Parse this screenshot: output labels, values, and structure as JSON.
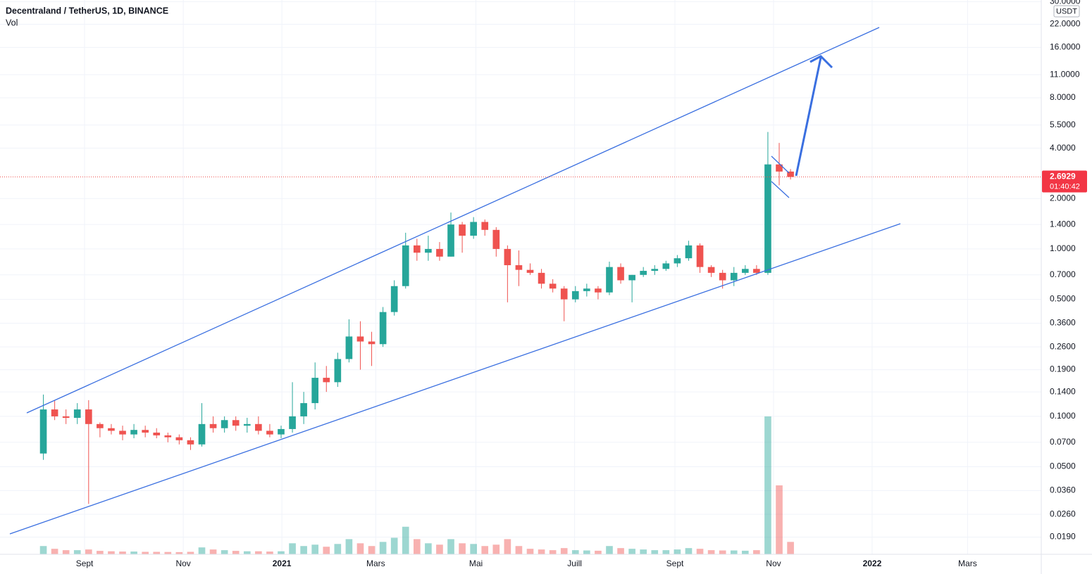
{
  "chart_data": {
    "type": "candlestick",
    "title": "Decentraland / TetherUS, 1D, BINANCE",
    "volume_label": "Vol",
    "currency": "USDT",
    "last_price": 2.6929,
    "countdown": "01:40:42",
    "log_scale": true,
    "grid": true,
    "up_color": "#26a69a",
    "down_color": "#ef5350",
    "open": [
      0.06,
      0.11,
      0.1,
      0.098,
      0.11,
      0.09,
      0.085,
      0.082,
      0.078,
      0.083,
      0.08,
      0.077,
      0.075,
      0.072,
      0.068,
      0.09,
      0.085,
      0.095,
      0.088,
      0.09,
      0.082,
      0.078,
      0.084,
      0.1,
      0.12,
      0.17,
      0.16,
      0.22,
      0.3,
      0.28,
      0.27,
      0.42,
      0.6,
      1.05,
      0.95,
      1.0,
      0.9,
      1.4,
      1.2,
      1.45,
      1.3,
      1.0,
      0.8,
      0.75,
      0.72,
      0.62,
      0.58,
      0.5,
      0.56,
      0.58,
      0.55,
      0.78,
      0.65,
      0.7,
      0.74,
      0.76,
      0.82,
      0.88,
      1.05,
      0.78,
      0.72,
      0.65,
      0.72,
      0.76,
      0.72,
      3.2,
      2.9
    ],
    "high": [
      0.135,
      0.125,
      0.11,
      0.12,
      0.125,
      0.092,
      0.09,
      0.088,
      0.09,
      0.088,
      0.085,
      0.08,
      0.078,
      0.075,
      0.12,
      0.1,
      0.1,
      0.1,
      0.098,
      0.1,
      0.09,
      0.088,
      0.16,
      0.14,
      0.21,
      0.2,
      0.24,
      0.38,
      0.37,
      0.32,
      0.45,
      0.65,
      1.25,
      1.15,
      1.2,
      1.1,
      1.65,
      1.45,
      1.55,
      1.5,
      1.35,
      1.05,
      0.98,
      0.82,
      0.76,
      0.66,
      0.6,
      0.6,
      0.62,
      0.6,
      0.84,
      0.82,
      0.7,
      0.78,
      0.8,
      0.85,
      0.92,
      1.12,
      1.08,
      0.8,
      0.75,
      0.78,
      0.8,
      0.8,
      5.0,
      4.3,
      3.0
    ],
    "low": [
      0.055,
      0.095,
      0.09,
      0.09,
      0.03,
      0.075,
      0.078,
      0.072,
      0.074,
      0.075,
      0.074,
      0.07,
      0.068,
      0.063,
      0.066,
      0.08,
      0.08,
      0.082,
      0.08,
      0.078,
      0.075,
      0.074,
      0.08,
      0.09,
      0.11,
      0.14,
      0.15,
      0.21,
      0.19,
      0.2,
      0.26,
      0.4,
      0.58,
      0.85,
      0.85,
      0.85,
      0.9,
      0.95,
      1.15,
      1.2,
      0.9,
      0.48,
      0.6,
      0.7,
      0.58,
      0.55,
      0.37,
      0.48,
      0.52,
      0.5,
      0.53,
      0.62,
      0.48,
      0.68,
      0.7,
      0.74,
      0.78,
      0.85,
      0.72,
      0.68,
      0.58,
      0.6,
      0.7,
      0.7,
      0.7,
      2.4,
      2.6
    ],
    "close": [
      0.11,
      0.1,
      0.098,
      0.11,
      0.09,
      0.085,
      0.082,
      0.078,
      0.083,
      0.08,
      0.077,
      0.075,
      0.072,
      0.068,
      0.09,
      0.085,
      0.095,
      0.088,
      0.09,
      0.082,
      0.078,
      0.084,
      0.1,
      0.12,
      0.17,
      0.16,
      0.22,
      0.3,
      0.28,
      0.27,
      0.42,
      0.6,
      1.05,
      0.95,
      1.0,
      0.9,
      1.4,
      1.2,
      1.45,
      1.3,
      1.0,
      0.8,
      0.75,
      0.72,
      0.62,
      0.58,
      0.5,
      0.56,
      0.58,
      0.55,
      0.78,
      0.65,
      0.7,
      0.74,
      0.76,
      0.82,
      0.88,
      1.05,
      0.78,
      0.72,
      0.65,
      0.72,
      0.76,
      0.72,
      3.2,
      2.9,
      2.6929
    ],
    "volume": [
      60,
      40,
      30,
      30,
      35,
      25,
      22,
      20,
      20,
      18,
      18,
      17,
      16,
      18,
      50,
      35,
      30,
      25,
      22,
      22,
      20,
      22,
      80,
      60,
      70,
      55,
      75,
      110,
      80,
      60,
      90,
      120,
      200,
      110,
      80,
      70,
      110,
      80,
      75,
      60,
      70,
      110,
      60,
      40,
      35,
      30,
      45,
      30,
      28,
      26,
      60,
      45,
      40,
      35,
      30,
      30,
      35,
      45,
      40,
      30,
      28,
      28,
      26,
      30,
      1000,
      500,
      90
    ],
    "xlim": [
      -3.83,
      88.15
    ],
    "xticks": [
      {
        "value": 3.64,
        "label": "Sept"
      },
      {
        "value": 12.36,
        "label": "Nov"
      },
      {
        "value": 21.07,
        "label": "2021"
      },
      {
        "value": 29.36,
        "label": "Mars"
      },
      {
        "value": 38.21,
        "label": "Mai"
      },
      {
        "value": 46.93,
        "label": "Juill"
      },
      {
        "value": 55.79,
        "label": "Sept"
      },
      {
        "value": 64.5,
        "label": "Nov"
      },
      {
        "value": 73.21,
        "label": "2022"
      },
      {
        "value": 81.64,
        "label": "Mars"
      }
    ],
    "ylim": [
      0.015,
      30.7
    ],
    "yticks": [
      {
        "value": 30,
        "label": "30.0000"
      },
      {
        "value": 22,
        "label": "22.0000"
      },
      {
        "value": 16,
        "label": "16.0000"
      },
      {
        "value": 11,
        "label": "11.0000"
      },
      {
        "value": 8,
        "label": "8.0000"
      },
      {
        "value": 5.5,
        "label": "5.5000"
      },
      {
        "value": 4,
        "label": "4.0000"
      },
      {
        "value": 2,
        "label": "2.0000"
      },
      {
        "value": 1.4,
        "label": "1.4000"
      },
      {
        "value": 1,
        "label": "1.0000"
      },
      {
        "value": 0.7,
        "label": "0.7000"
      },
      {
        "value": 0.5,
        "label": "0.5000"
      },
      {
        "value": 0.36,
        "label": "0.3600"
      },
      {
        "value": 0.26,
        "label": "0.2600"
      },
      {
        "value": 0.19,
        "label": "0.1900"
      },
      {
        "value": 0.14,
        "label": "0.1400"
      },
      {
        "value": 0.1,
        "label": "0.1000"
      },
      {
        "value": 0.07,
        "label": "0.0700"
      },
      {
        "value": 0.05,
        "label": "0.0500"
      },
      {
        "value": 0.036,
        "label": "0.0360"
      },
      {
        "value": 0.026,
        "label": "0.0260"
      },
      {
        "value": 0.019,
        "label": "0.0190"
      }
    ]
  }
}
